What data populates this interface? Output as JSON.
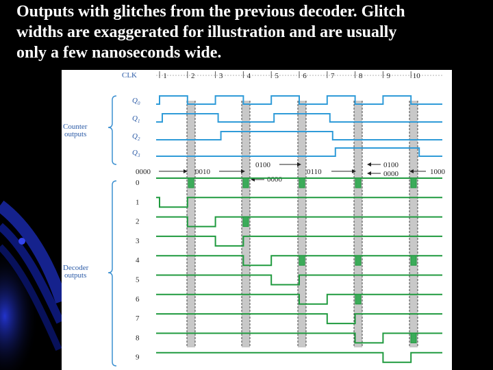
{
  "caption": {
    "line1": "Outputs with glitches from the previous decoder. Glitch",
    "line2": "widths are exaggerated for illustration and are usually",
    "line3": "only a few nanoseconds wide."
  },
  "colors": {
    "background": "#000000",
    "counter_wave": "#2f9bd8",
    "decoder_wave": "#1f9a3e",
    "glitch_band": "#c8c8c8",
    "glitch_fill": "#3cab5a",
    "label_text": "#2a5aa6",
    "brace": "#3a8fd0"
  },
  "timing": {
    "clk_label": "CLK",
    "pulse_numbers": [
      "1",
      "2",
      "3",
      "4",
      "5",
      "6",
      "7",
      "8",
      "9",
      "10"
    ]
  },
  "counter": {
    "group_label_line1": "Counter",
    "group_label_line2": "outputs",
    "signals": [
      {
        "name": "Q0",
        "base": "Q",
        "sub": "0"
      },
      {
        "name": "Q1",
        "base": "Q",
        "sub": "1"
      },
      {
        "name": "Q2",
        "base": "Q",
        "sub": "2"
      },
      {
        "name": "Q3",
        "base": "Q",
        "sub": "3"
      }
    ],
    "state_labels": {
      "s0000": "0000",
      "s0010": "0010",
      "s0100_top": "0100",
      "s0000_mid": "0000",
      "s0110": "0110",
      "s0100_right": "0100",
      "s0000_right": "0000",
      "s1000": "1000"
    }
  },
  "decoder": {
    "group_label_line1": "Decoder",
    "group_label_line2": "outputs",
    "outputs": [
      "0",
      "1",
      "2",
      "3",
      "4",
      "5",
      "6",
      "7",
      "8",
      "9"
    ]
  }
}
